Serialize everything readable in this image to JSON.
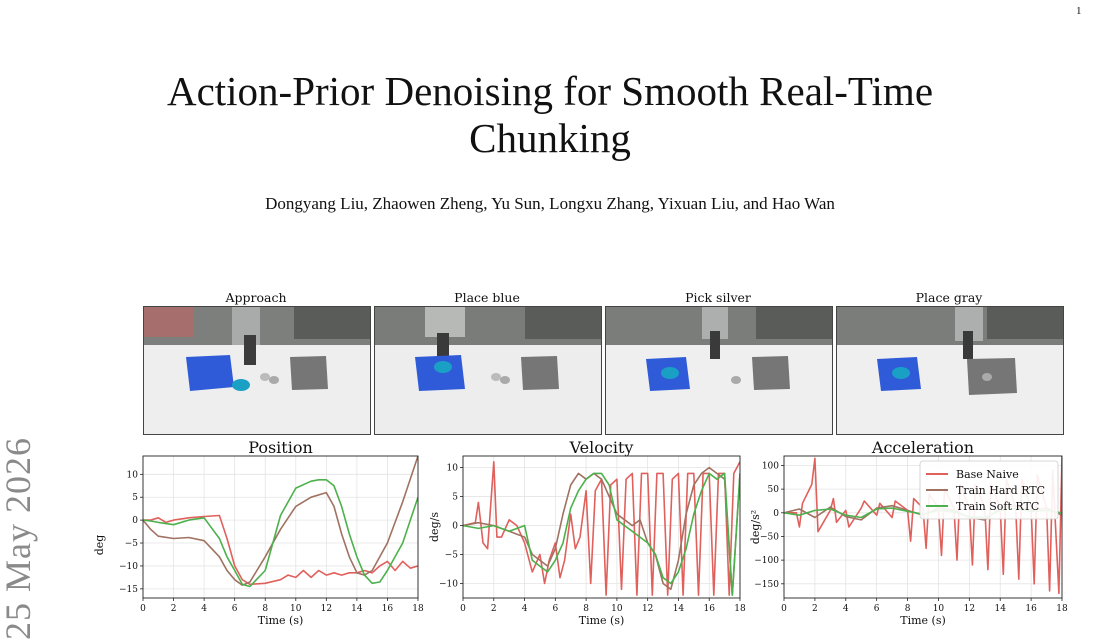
{
  "page_number": "1",
  "arxiv_stamp": "25 May 2026",
  "title": "Action-Prior Denoising for Smooth Real-Time Chunking",
  "authors": "Dongyang Liu, Zhaowen Zheng, Yu Sun, Longxu Zhang, Yixuan Liu, and Hao Wan",
  "photos": [
    {
      "label": "Approach"
    },
    {
      "label": "Place blue"
    },
    {
      "label": "Pick silver"
    },
    {
      "label": "Place gray"
    }
  ],
  "colors": {
    "base": "#e0605c",
    "hard": "#a07262",
    "soft": "#4cb14c"
  },
  "chart_data": [
    {
      "type": "line",
      "title": "Position",
      "xlabel": "Time (s)",
      "ylabel": "deg",
      "xlim": [
        0,
        18
      ],
      "ylim": [
        -17,
        14
      ],
      "xticks": [
        0,
        2,
        4,
        6,
        8,
        10,
        12,
        14,
        16,
        18
      ],
      "yticks": [
        -15,
        -10,
        -5,
        0,
        5,
        10
      ],
      "grid": true,
      "series": [
        {
          "name": "Base Naive",
          "x": [
            0,
            0.5,
            1,
            1.5,
            2,
            3,
            4,
            5,
            5.5,
            6,
            6.5,
            7,
            8,
            9,
            9.5,
            10,
            10.5,
            11,
            11.5,
            12,
            12.5,
            13,
            13.5,
            14,
            14.5,
            15,
            15.5,
            16,
            16.5,
            17,
            17.5,
            18
          ],
          "y": [
            0,
            0,
            0.5,
            -0.5,
            0,
            0.5,
            0.8,
            1,
            -4,
            -10,
            -13,
            -14,
            -13.8,
            -13,
            -12,
            -12.5,
            -11,
            -12.5,
            -11,
            -12,
            -11.5,
            -12,
            -11.5,
            -11.5,
            -11,
            -11.5,
            -10,
            -9,
            -11,
            -9,
            -10.5,
            -10
          ]
        },
        {
          "name": "Train Hard RTC",
          "x": [
            0,
            0.5,
            1,
            2,
            3,
            4,
            5,
            5.5,
            6,
            6.5,
            7,
            8,
            9,
            10,
            11,
            12,
            12.5,
            13,
            13.5,
            14,
            14.5,
            15,
            16,
            17,
            18
          ],
          "y": [
            0,
            -2,
            -3.5,
            -4,
            -3.8,
            -4.5,
            -8,
            -11,
            -13,
            -14.2,
            -13.5,
            -8,
            -2,
            3,
            5,
            6,
            3,
            -3,
            -8,
            -11.5,
            -12,
            -11,
            -5,
            4,
            14
          ]
        },
        {
          "name": "Train Soft RTC",
          "x": [
            0,
            0.5,
            1,
            2,
            3,
            4,
            5,
            5.5,
            6,
            6.5,
            7,
            8,
            9,
            10,
            11,
            11.5,
            12,
            12.5,
            13,
            13.5,
            14,
            14.5,
            15,
            15.5,
            16,
            17,
            18
          ],
          "y": [
            0,
            -0.2,
            -0.5,
            -1,
            0,
            0.5,
            -4,
            -8,
            -11,
            -14,
            -14.5,
            -11,
            1,
            7,
            8.5,
            8.8,
            8.8,
            7.5,
            3,
            -3,
            -8,
            -12,
            -13.8,
            -13.5,
            -11,
            -5,
            5
          ]
        }
      ]
    },
    {
      "type": "line",
      "title": "Velocity",
      "xlabel": "Time (s)",
      "ylabel": "deg/s",
      "xlim": [
        0,
        18
      ],
      "ylim": [
        -12.5,
        12
      ],
      "xticks": [
        0,
        2,
        4,
        6,
        8,
        10,
        12,
        14,
        16,
        18
      ],
      "yticks": [
        -10,
        -5,
        0,
        5,
        10
      ],
      "grid": true,
      "series": [
        {
          "name": "Base Naive",
          "x": [
            0,
            0.8,
            1,
            1.3,
            1.6,
            2,
            2.2,
            2.5,
            3,
            3.5,
            4,
            4.5,
            5,
            5.3,
            5.6,
            6,
            6.3,
            6.6,
            7,
            7.3,
            7.6,
            8,
            8.3,
            8.6,
            9,
            9.3,
            9.6,
            10,
            10.3,
            10.6,
            11,
            11.3,
            11.6,
            12,
            12.3,
            12.6,
            13,
            13.3,
            13.6,
            14,
            14.3,
            14.6,
            15,
            15.3,
            15.6,
            16,
            16.3,
            16.6,
            17,
            17.3,
            17.6,
            18
          ],
          "y": [
            0,
            0.5,
            4,
            -3,
            -4,
            11,
            -2,
            -2,
            1,
            0,
            -3,
            -8,
            -5,
            -10,
            -6,
            -3,
            -9,
            -6,
            2,
            -4,
            -2,
            6,
            -10,
            6,
            8,
            -12,
            7,
            8,
            -11,
            8,
            9,
            -12,
            9,
            9,
            -12,
            9,
            9,
            -12,
            8,
            9,
            -12,
            9,
            9,
            -12,
            9,
            9,
            -12,
            9,
            9,
            -12,
            9,
            11
          ]
        },
        {
          "name": "Train Hard RTC",
          "x": [
            0,
            1,
            2,
            3,
            4,
            4.5,
            5,
            5.5,
            6,
            6.5,
            7,
            7.5,
            8,
            8.5,
            9,
            9.5,
            10,
            10.5,
            11,
            11.5,
            12,
            12.5,
            13,
            13.5,
            14,
            14.5,
            15,
            15.5,
            16,
            16.5,
            17,
            17.5,
            18
          ],
          "y": [
            0,
            0.5,
            0,
            -1,
            -2,
            -5,
            -6,
            -7,
            -4,
            2,
            7,
            9,
            8,
            9,
            8,
            5,
            2,
            1,
            0,
            1,
            -3,
            -5,
            -10,
            -11,
            -6,
            2,
            7,
            9,
            10,
            9,
            8,
            -12,
            9
          ]
        },
        {
          "name": "Train Soft RTC",
          "x": [
            0,
            1,
            2,
            3,
            4,
            4.5,
            5,
            5.5,
            6,
            6.5,
            7,
            7.5,
            8,
            8.5,
            9,
            9.5,
            10,
            10.5,
            11,
            11.5,
            12,
            12.5,
            13,
            13.5,
            14,
            14.5,
            15,
            15.5,
            16,
            16.5,
            17,
            17.5,
            18
          ],
          "y": [
            0,
            -0.5,
            0,
            -1,
            0,
            -6,
            -7,
            -8,
            -6,
            -3,
            3,
            6,
            8,
            9,
            9,
            7,
            1,
            0,
            -1,
            -2,
            -3,
            -5,
            -9,
            -10,
            -8,
            -4,
            2,
            6,
            9,
            8,
            9,
            -12,
            9
          ]
        }
      ]
    },
    {
      "type": "line",
      "title": "Acceleration",
      "xlabel": "Time (s)",
      "ylabel": "deg/s²",
      "xlim": [
        0,
        18
      ],
      "ylim": [
        -180,
        120
      ],
      "xticks": [
        0,
        2,
        4,
        6,
        8,
        10,
        12,
        14,
        16,
        18
      ],
      "yticks": [
        -150,
        -100,
        -50,
        0,
        50,
        100
      ],
      "grid": true,
      "legend_position": "top-right",
      "series": [
        {
          "name": "Base Naive",
          "x": [
            0,
            0.8,
            1,
            1.2,
            1.8,
            2,
            2.2,
            3,
            3.2,
            3.4,
            4,
            4.2,
            5,
            5.2,
            6,
            6.2,
            7,
            7.2,
            8,
            8.2,
            8.4,
            9,
            9.2,
            9.4,
            10,
            10.2,
            10.4,
            11,
            11.2,
            11.4,
            12,
            12.2,
            12.4,
            13,
            13.2,
            13.4,
            14,
            14.2,
            14.4,
            15,
            15.2,
            15.4,
            16,
            16.2,
            16.4,
            17,
            17.2,
            17.4,
            17.8,
            18
          ],
          "y": [
            0,
            0,
            -30,
            20,
            60,
            115,
            -40,
            5,
            30,
            -20,
            5,
            -30,
            10,
            25,
            -5,
            20,
            -10,
            25,
            5,
            -60,
            30,
            10,
            -75,
            40,
            10,
            -90,
            50,
            10,
            -100,
            60,
            10,
            -110,
            60,
            10,
            -120,
            60,
            10,
            -130,
            70,
            10,
            -140,
            70,
            10,
            -150,
            80,
            10,
            -165,
            90,
            -170,
            120
          ]
        },
        {
          "name": "Train Hard RTC",
          "x": [
            0,
            1,
            2,
            3,
            4,
            5,
            6,
            7,
            8,
            9,
            10,
            11,
            12,
            13,
            14,
            15,
            16,
            17,
            18
          ],
          "y": [
            0,
            8,
            -10,
            12,
            -8,
            -15,
            10,
            15,
            5,
            -5,
            10,
            5,
            -10,
            -15,
            10,
            15,
            5,
            10,
            -5
          ]
        },
        {
          "name": "Train Soft RTC",
          "x": [
            0,
            1,
            2,
            3,
            4,
            5,
            6,
            7,
            8,
            9,
            10,
            11,
            12,
            13,
            14,
            15,
            16,
            17,
            18
          ],
          "y": [
            0,
            -5,
            5,
            8,
            -5,
            -10,
            8,
            10,
            3,
            -3,
            5,
            2,
            -8,
            -10,
            5,
            10,
            3,
            5,
            0
          ]
        }
      ]
    }
  ]
}
